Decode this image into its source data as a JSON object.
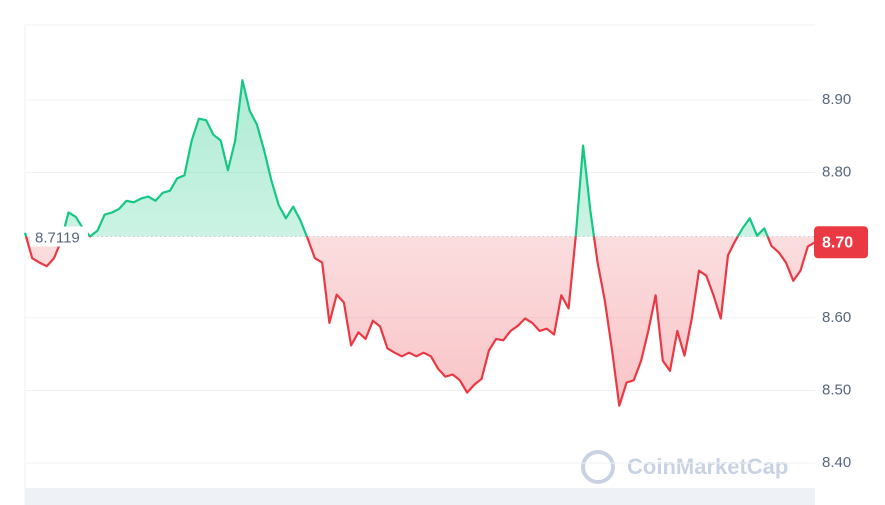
{
  "chart_data": {
    "type": "line",
    "values": [
      8.717,
      8.682,
      8.676,
      8.671,
      8.682,
      8.706,
      8.745,
      8.739,
      8.723,
      8.712,
      8.72,
      8.742,
      8.745,
      8.75,
      8.761,
      8.759,
      8.764,
      8.767,
      8.761,
      8.772,
      8.775,
      8.792,
      8.796,
      8.844,
      8.874,
      8.872,
      8.852,
      8.844,
      8.803,
      8.844,
      8.927,
      8.885,
      8.866,
      8.83,
      8.789,
      8.755,
      8.737,
      8.753,
      8.734,
      8.709,
      8.682,
      8.676,
      8.593,
      8.632,
      8.621,
      8.562,
      8.58,
      8.571,
      8.596,
      8.588,
      8.558,
      8.552,
      8.547,
      8.552,
      8.547,
      8.552,
      8.547,
      8.53,
      8.519,
      8.522,
      8.514,
      8.497,
      8.508,
      8.516,
      8.555,
      8.571,
      8.569,
      8.582,
      8.589,
      8.599,
      8.593,
      8.582,
      8.585,
      8.577,
      8.631,
      8.613,
      8.713,
      8.837,
      8.748,
      8.676,
      8.624,
      8.555,
      8.479,
      8.511,
      8.514,
      8.541,
      8.582,
      8.631,
      8.541,
      8.527,
      8.582,
      8.548,
      8.599,
      8.665,
      8.658,
      8.631,
      8.599,
      8.686,
      8.706,
      8.723,
      8.737,
      8.713,
      8.723,
      8.699,
      8.69,
      8.676,
      8.651,
      8.665,
      8.698,
      8.704
    ],
    "baseline": 8.7119,
    "last_price_label": "8.70",
    "up_color": "#16c784",
    "down_color": "#ea3943",
    "ylim": [
      8.363,
      9.003
    ],
    "yticks": [
      {
        "value": 8.4,
        "label": "8.40"
      },
      {
        "value": 8.5,
        "label": "8.50"
      },
      {
        "value": 8.6,
        "label": "8.60"
      },
      {
        "value": 8.8,
        "label": "8.80"
      },
      {
        "value": 8.9,
        "label": "8.90"
      }
    ],
    "grid": true,
    "watermark": "CoinMarketCap"
  }
}
